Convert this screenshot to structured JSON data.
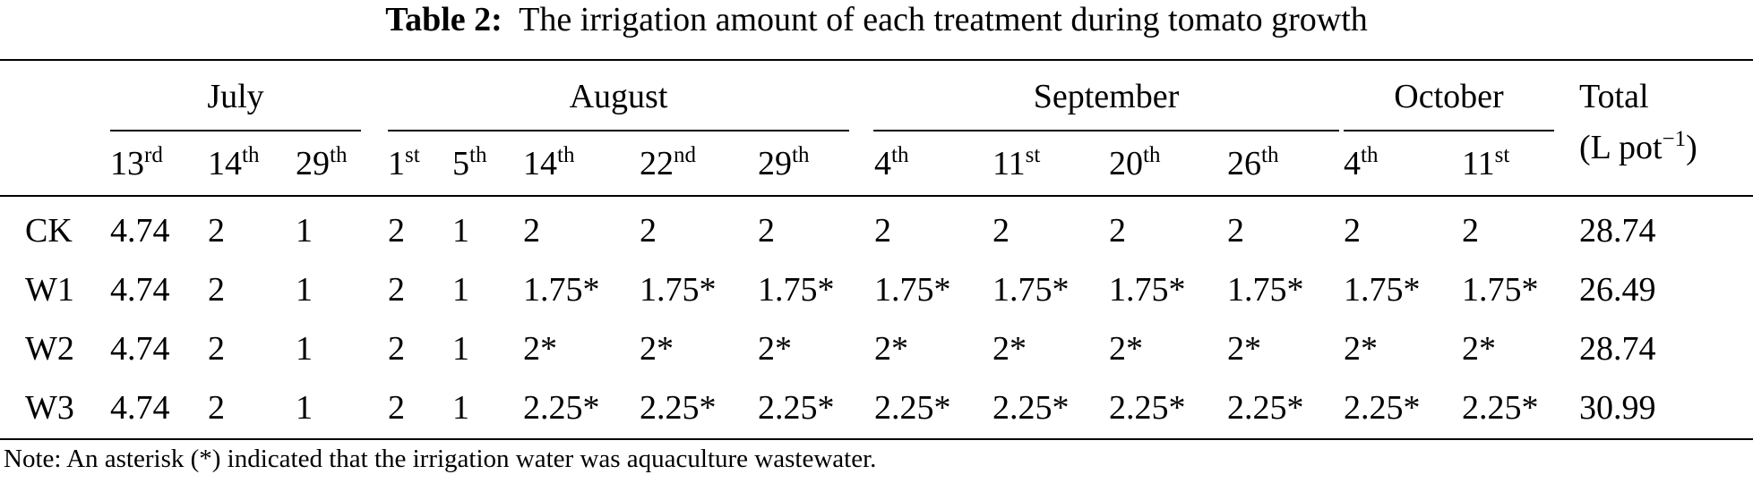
{
  "caption": {
    "label": "Table 2:",
    "text": "The irrigation amount of each treatment during tomato growth"
  },
  "months": [
    "July",
    "August",
    "September",
    "October"
  ],
  "total_header": {
    "line1": "Total",
    "line2_prefix": "(L pot",
    "line2_exp": "−1",
    "line2_suffix": ")"
  },
  "dates": [
    {
      "d": "13",
      "s": "rd"
    },
    {
      "d": "14",
      "s": "th"
    },
    {
      "d": "29",
      "s": "th"
    },
    {
      "d": "1",
      "s": "st"
    },
    {
      "d": "5",
      "s": "th"
    },
    {
      "d": "14",
      "s": "th"
    },
    {
      "d": "22",
      "s": "nd"
    },
    {
      "d": "29",
      "s": "th"
    },
    {
      "d": "4",
      "s": "th"
    },
    {
      "d": "11",
      "s": "st"
    },
    {
      "d": "20",
      "s": "th"
    },
    {
      "d": "26",
      "s": "th"
    },
    {
      "d": "4",
      "s": "th"
    },
    {
      "d": "11",
      "s": "st"
    }
  ],
  "rows": [
    {
      "name": "CK",
      "values": [
        "4.74",
        "2",
        "1",
        "2",
        "1",
        "2",
        "2",
        "2",
        "2",
        "2",
        "2",
        "2",
        "2",
        "2"
      ],
      "total": "28.74"
    },
    {
      "name": "W1",
      "values": [
        "4.74",
        "2",
        "1",
        "2",
        "1",
        "1.75*",
        "1.75*",
        "1.75*",
        "1.75*",
        "1.75*",
        "1.75*",
        "1.75*",
        "1.75*",
        "1.75*"
      ],
      "total": "26.49"
    },
    {
      "name": "W2",
      "values": [
        "4.74",
        "2",
        "1",
        "2",
        "1",
        "2*",
        "2*",
        "2*",
        "2*",
        "2*",
        "2*",
        "2*",
        "2*",
        "2*"
      ],
      "total": "28.74"
    },
    {
      "name": "W3",
      "values": [
        "4.74",
        "2",
        "1",
        "2",
        "1",
        "2.25*",
        "2.25*",
        "2.25*",
        "2.25*",
        "2.25*",
        "2.25*",
        "2.25*",
        "2.25*",
        "2.25*"
      ],
      "total": "30.99"
    }
  ],
  "note": "Note: An asterisk (*) indicated that the irrigation water was aquaculture wastewater."
}
